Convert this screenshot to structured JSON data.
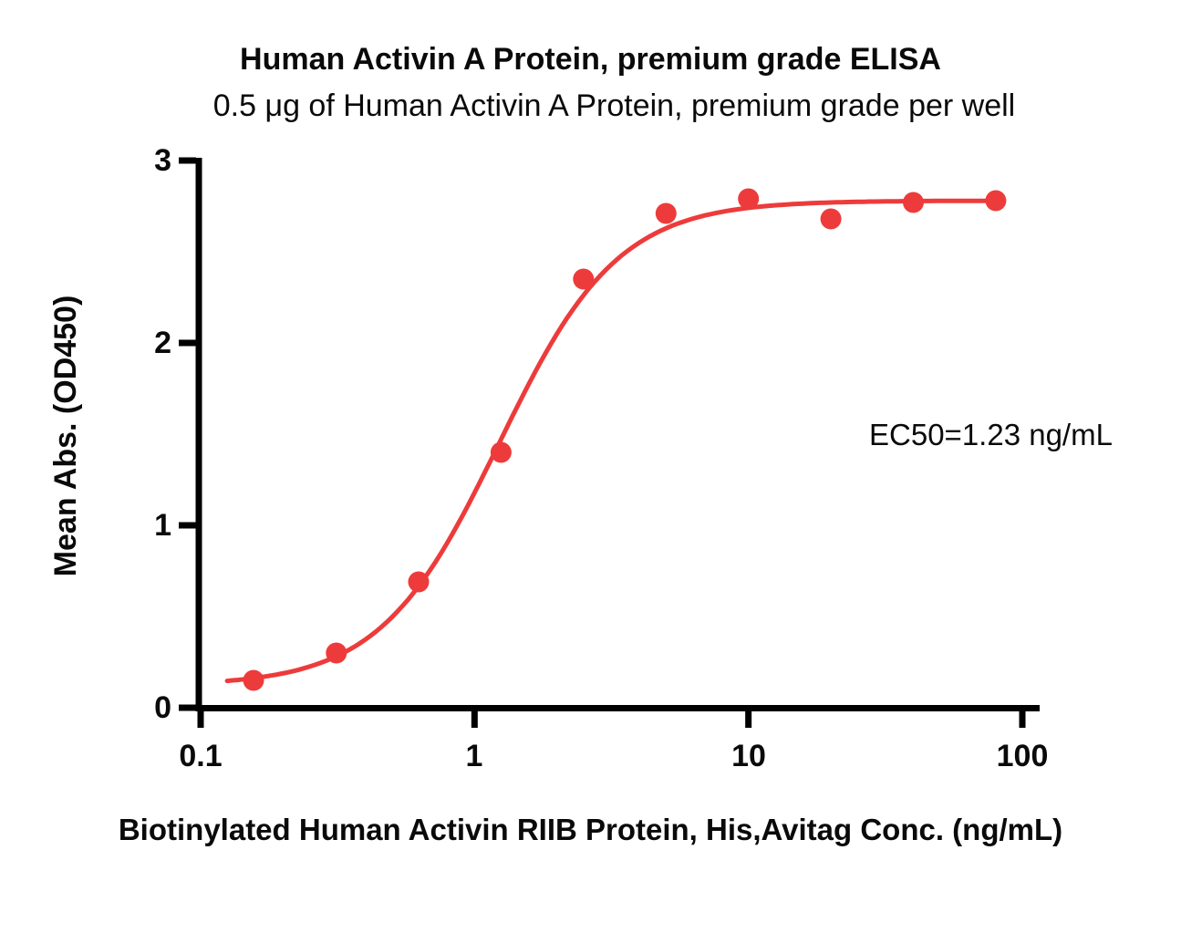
{
  "chart_data": {
    "type": "scatter",
    "title": "Human Activin A Protein, premium grade ELISA",
    "subtitle": "0.5 μg of Human Activin A Protein, premium grade per well",
    "xlabel": "Biotinylated Human Activin RIIB Protein, His,Avitag Conc. (ng/mL)",
    "ylabel": "Mean Abs. (OD450)",
    "x_scale": "log10",
    "xlim": [
      0.1,
      100
    ],
    "ylim": [
      0,
      3
    ],
    "grid": false,
    "legend": "none",
    "x_tick_values": [
      0.1,
      1,
      10,
      100
    ],
    "x_tick_labels": [
      "0.1",
      "1",
      "10",
      "100"
    ],
    "y_tick_values": [
      0,
      1,
      2,
      3
    ],
    "y_tick_labels": [
      "0",
      "1",
      "2",
      "3"
    ],
    "x": [
      0.156,
      0.313,
      0.625,
      1.25,
      2.5,
      5,
      10,
      20,
      40,
      80
    ],
    "y": [
      0.15,
      0.3,
      0.69,
      1.4,
      2.35,
      2.71,
      2.79,
      2.68,
      2.77,
      2.78
    ],
    "fit_curve": {
      "model": "4PL",
      "bottom": 0.12,
      "top": 2.78,
      "ec50": 1.23,
      "hill": 2.0,
      "x_start": 0.125,
      "x_end": 80
    },
    "annotation": "EC50=1.23 ng/mL",
    "point_color": "#ED3B3B",
    "line_color": "#ED3B3B",
    "axis_color": "#000000",
    "text_color": "#0a0a0a"
  }
}
